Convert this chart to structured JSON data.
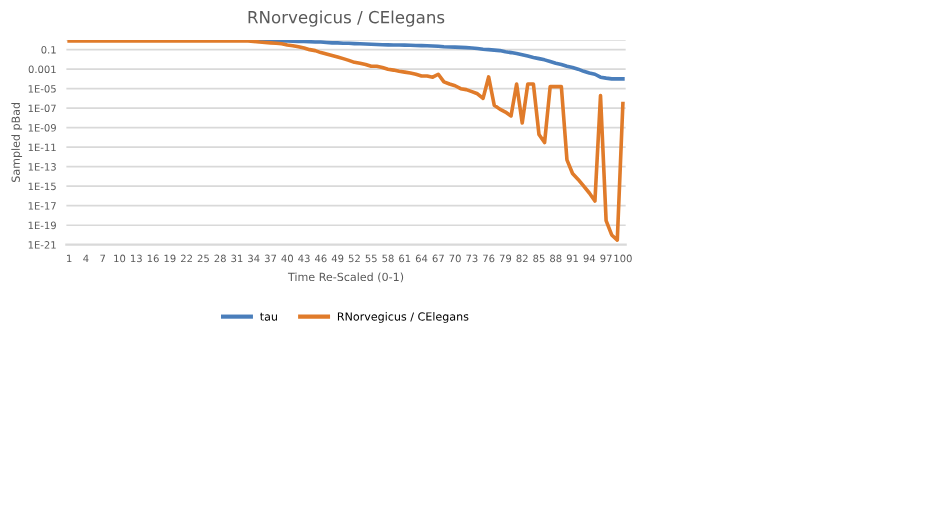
{
  "chart_data": {
    "type": "line",
    "title": "RNorvegicus / CElegans",
    "xlabel": "Time Re-Scaled (0-1)",
    "ylabel": "Sampled pBad",
    "categories": [
      "1",
      null,
      null,
      "4",
      null,
      null,
      "7",
      null,
      null,
      "10",
      null,
      null,
      "13",
      null,
      null,
      "16",
      null,
      null,
      "19",
      null,
      null,
      "22",
      null,
      null,
      "25",
      null,
      null,
      "28",
      null,
      null,
      "31",
      null,
      null,
      "34",
      null,
      null,
      "37",
      null,
      null,
      "40",
      null,
      null,
      "43",
      null,
      null,
      "46",
      null,
      null,
      "49",
      null,
      null,
      "52",
      null,
      null,
      "55",
      null,
      null,
      "58",
      null,
      null,
      "61",
      null,
      null,
      "64",
      null,
      null,
      "67",
      null,
      null,
      "70",
      null,
      null,
      "73",
      null,
      null,
      "76",
      null,
      null,
      "79",
      null,
      null,
      "82",
      null,
      null,
      "85",
      null,
      null,
      "88",
      null,
      null,
      "91",
      null,
      null,
      "94",
      null,
      null,
      "97",
      null,
      null,
      "100"
    ],
    "series": [
      {
        "name": "tau",
        "color": "#4a7ebb",
        "values": [
          null,
          null,
          null,
          null,
          null,
          null,
          null,
          null,
          null,
          null,
          null,
          null,
          null,
          null,
          null,
          null,
          null,
          null,
          null,
          null,
          null,
          null,
          null,
          null,
          null,
          null,
          null,
          null,
          null,
          null,
          null,
          null,
          null,
          0.8,
          0.8,
          0.8,
          0.8,
          0.8,
          0.8,
          0.8,
          0.75,
          0.7,
          0.7,
          0.65,
          0.6,
          0.6,
          0.55,
          0.5,
          0.5,
          0.45,
          0.45,
          0.42,
          0.4,
          0.38,
          0.36,
          0.34,
          0.32,
          0.31,
          0.3,
          0.3,
          0.29,
          0.28,
          0.27,
          0.26,
          0.25,
          0.24,
          0.22,
          0.2,
          0.19,
          0.18,
          0.17,
          0.16,
          0.15,
          0.13,
          0.11,
          0.1,
          0.09,
          0.08,
          0.06,
          0.05,
          0.04,
          0.03,
          0.022,
          0.016,
          0.012,
          0.009,
          0.006,
          0.004,
          0.003,
          0.002,
          0.0015,
          0.001,
          0.0006,
          0.0004,
          0.0003,
          0.00015,
          0.00012,
          0.0001,
          0.0001,
          0.0001
        ]
      },
      {
        "name": "RNorvegicus / CElegans",
        "color": "#e07b2a",
        "values": [
          0.8,
          0.8,
          0.8,
          0.8,
          0.8,
          0.8,
          0.8,
          0.8,
          0.8,
          0.8,
          0.8,
          0.8,
          0.8,
          0.8,
          0.8,
          0.8,
          0.8,
          0.8,
          0.8,
          0.8,
          0.8,
          0.8,
          0.8,
          0.8,
          0.8,
          0.8,
          0.8,
          0.8,
          0.8,
          0.8,
          0.8,
          0.8,
          0.8,
          0.7,
          0.6,
          0.55,
          0.5,
          0.45,
          0.4,
          0.3,
          0.25,
          0.2,
          0.15,
          0.1,
          0.08,
          0.05,
          0.035,
          0.025,
          0.018,
          0.012,
          0.008,
          0.005,
          0.004,
          0.003,
          0.002,
          0.002,
          0.0015,
          0.001,
          0.0008,
          0.0006,
          0.0005,
          0.0004,
          0.0003,
          0.0002,
          0.0002,
          0.00015,
          0.0003,
          5e-05,
          3e-05,
          2e-05,
          1e-05,
          8e-06,
          5e-06,
          3e-06,
          1e-06,
          0.00016,
          2e-07,
          8e-08,
          4e-08,
          1.6e-08,
          3e-05,
          3e-09,
          3e-05,
          3e-05,
          2e-10,
          3e-11,
          1.6e-05,
          1.6e-05,
          1.6e-05,
          5e-13,
          2e-14,
          5e-15,
          1e-15,
          2e-16,
          3e-17,
          2e-06,
          3e-19,
          1e-20,
          3e-21,
          3e-07
        ]
      }
    ],
    "log": true,
    "ylim": [
      1e-21,
      1
    ],
    "yticks": [
      {
        "value": 1,
        "label": null
      },
      {
        "value": 0.1,
        "label": "0.1"
      },
      {
        "value": 0.001,
        "label": "0.001"
      },
      {
        "value": 1e-05,
        "label": "1E-05"
      },
      {
        "value": 1e-07,
        "label": "1E-07"
      },
      {
        "value": 1e-09,
        "label": "1E-09"
      },
      {
        "value": 1e-11,
        "label": "1E-11"
      },
      {
        "value": 1e-13,
        "label": "1E-13"
      },
      {
        "value": 1e-15,
        "label": "1E-15"
      },
      {
        "value": 1e-17,
        "label": "1E-17"
      },
      {
        "value": 1e-19,
        "label": "1E-19"
      },
      {
        "value": 1e-21,
        "label": "1E-21"
      }
    ],
    "grid": "y",
    "legend": "bottom",
    "marker": "none",
    "line_style": "solid"
  }
}
